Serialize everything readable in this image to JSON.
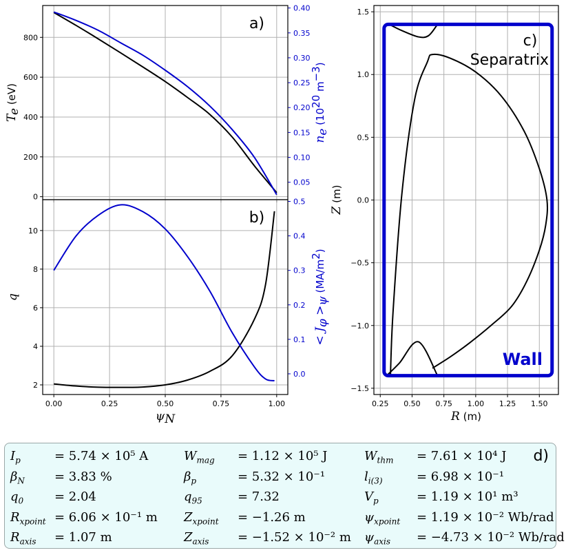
{
  "colors": {
    "black_series": "#000000",
    "blue_series": "#0000cc",
    "wall": "#0000cc",
    "box_bg": "#e9fbfb"
  },
  "chart_data": [
    {
      "type": "line",
      "panel": "a)",
      "xlabel": "",
      "ylabel": "T_e (eV)",
      "ylabel2": "n_e (10^20 m^-3)",
      "ylim": [
        -15,
        960
      ],
      "ylim2": [
        0.015,
        0.405
      ],
      "yticks": [
        "0",
        "200",
        "400",
        "600",
        "800"
      ],
      "yticks2": [
        "0.05",
        "0.10",
        "0.15",
        "0.20",
        "0.25",
        "0.30",
        "0.35",
        "0.40"
      ],
      "x": [
        0.0,
        0.1,
        0.2,
        0.3,
        0.4,
        0.5,
        0.6,
        0.7,
        0.8,
        0.9,
        1.0
      ],
      "series": [
        {
          "axis": "left",
          "color": "black",
          "values": [
            925,
            860,
            792,
            722,
            651,
            578,
            498,
            413,
            300,
            155,
            20
          ]
        },
        {
          "axis": "right",
          "color": "blue",
          "values": [
            0.392,
            0.375,
            0.355,
            0.33,
            0.305,
            0.275,
            0.242,
            0.203,
            0.156,
            0.1,
            0.025
          ]
        }
      ]
    },
    {
      "type": "line",
      "panel": "b)",
      "xlabel": "ψ_N",
      "ylabel": "q",
      "ylabel2": "< J_φ >_ψ (MA/m²)",
      "xlim": [
        -0.05,
        1.05
      ],
      "ylim": [
        1.5,
        11.6
      ],
      "ylim2": [
        -0.06,
        0.505
      ],
      "xticks": [
        "0.00",
        "0.25",
        "0.50",
        "0.75",
        "1.00"
      ],
      "yticks": [
        "2",
        "4",
        "6",
        "8",
        "10"
      ],
      "yticks2": [
        "0.0",
        "0.1",
        "0.2",
        "0.3",
        "0.4",
        "0.5"
      ],
      "x": [
        0.0,
        0.1,
        0.2,
        0.3,
        0.4,
        0.5,
        0.6,
        0.7,
        0.8,
        0.9,
        0.95,
        0.99
      ],
      "series": [
        {
          "axis": "left",
          "color": "black",
          "values": [
            2.05,
            1.94,
            1.88,
            1.87,
            1.89,
            2.0,
            2.25,
            2.7,
            3.5,
            5.4,
            7.2,
            11.0
          ]
        },
        {
          "axis": "right",
          "color": "blue",
          "values": [
            0.3,
            0.4,
            0.46,
            0.49,
            0.47,
            0.42,
            0.34,
            0.24,
            0.12,
            0.02,
            -0.015,
            -0.02
          ]
        }
      ]
    },
    {
      "type": "line",
      "panel": "c)",
      "xlabel": "R (m)",
      "ylabel": "Z (m)",
      "xlim": [
        0.2,
        1.65
      ],
      "ylim": [
        -1.55,
        1.55
      ],
      "xticks": [
        "0.25",
        "0.50",
        "0.75",
        "1.00",
        "1.25",
        "1.50"
      ],
      "yticks": [
        "−1.5",
        "−1.0",
        "−0.5",
        "0.0",
        "0.5",
        "1.0",
        "1.5"
      ],
      "separatrix_label": "Separatrix",
      "wall_label": "Wall",
      "wall": {
        "r": [
          0.28,
          1.6
        ],
        "z": [
          -1.4,
          1.4
        ]
      },
      "separatrix": {
        "r": [
          0.33,
          0.35,
          0.42,
          0.52,
          0.62,
          0.66,
          0.8,
          1.0,
          1.2,
          1.38,
          1.5,
          1.56,
          1.55,
          1.5,
          1.4,
          1.28,
          1.12,
          0.95,
          0.8,
          0.66
        ],
        "z": [
          -1.4,
          -0.9,
          0.05,
          0.8,
          1.1,
          1.16,
          1.13,
          1.02,
          0.83,
          0.55,
          0.25,
          0.0,
          -0.2,
          -0.4,
          -0.65,
          -0.85,
          -1.0,
          -1.14,
          -1.25,
          -1.34
        ]
      },
      "divertor_leg": {
        "r": [
          0.3,
          0.4,
          0.55,
          0.7
        ],
        "z": [
          -1.4,
          -1.3,
          -1.13,
          -1.4
        ]
      },
      "top_cusp": {
        "r": [
          0.32,
          0.42,
          0.55,
          0.63,
          0.7
        ],
        "z": [
          1.4,
          1.35,
          1.3,
          1.31,
          1.4
        ]
      }
    }
  ],
  "info": {
    "label": "d)",
    "rows": [
      [
        {
          "sym": "I",
          "sub": "p",
          "val": "= 5.74 × 10⁵ A"
        },
        {
          "sym": "W",
          "sub": "mag",
          "val": "= 1.12 × 10⁵ J"
        },
        {
          "sym": "W",
          "sub": "thm",
          "val": "= 7.61 × 10⁴ J"
        }
      ],
      [
        {
          "sym": "β",
          "sub": "N",
          "val": "= 3.83 %"
        },
        {
          "sym": "β",
          "sub": "p",
          "val": "= 5.32 × 10⁻¹"
        },
        {
          "sym": "l",
          "sub": "i(3)",
          "val": "= 6.98 × 10⁻¹"
        }
      ],
      [
        {
          "sym": "q",
          "sub": "0",
          "val": "= 2.04"
        },
        {
          "sym": "q",
          "sub": "95",
          "val": "= 7.32"
        },
        {
          "sym": "V",
          "sub": "p",
          "val": "= 1.19 × 10¹ m³"
        }
      ],
      [
        {
          "sym": "R",
          "sub": "xpoint",
          "val": "= 6.06 × 10⁻¹ m"
        },
        {
          "sym": "Z",
          "sub": "xpoint",
          "val": "= −1.26 m"
        },
        {
          "sym": "ψ",
          "sub": "xpoint",
          "val": "= 1.19 × 10⁻² Wb/rad"
        }
      ],
      [
        {
          "sym": "R",
          "sub": "axis",
          "val": "= 1.07 m"
        },
        {
          "sym": "Z",
          "sub": "axis",
          "val": "= −1.52 × 10⁻² m"
        },
        {
          "sym": "ψ",
          "sub": "axis",
          "val": "= −4.73 × 10⁻² Wb/rad"
        }
      ]
    ]
  }
}
